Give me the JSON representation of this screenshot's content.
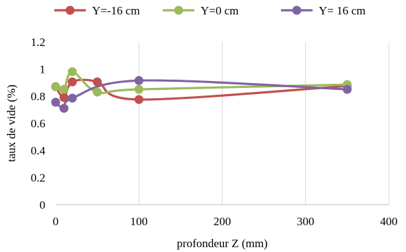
{
  "chart_data": {
    "type": "line",
    "title": "",
    "xlabel": "profondeur Z (mm)",
    "ylabel": "taux de vide (%)",
    "xlim": [
      0,
      400
    ],
    "ylim": [
      0,
      1.2
    ],
    "xticks": [
      0,
      100,
      200,
      300,
      400
    ],
    "yticks": [
      0,
      0.2,
      0.4,
      0.6,
      0.8,
      1,
      1.2
    ],
    "xtick_labels": [
      "0",
      "100",
      "200",
      "300",
      "400"
    ],
    "ytick_labels": [
      "0",
      "0.2",
      "0.4",
      "0.6",
      "0.8",
      "1",
      "1.2"
    ],
    "grid": "vertical",
    "legend_position": "top",
    "smooth": true,
    "series": [
      {
        "name": "Y=-16 cm",
        "color": "#C0504D",
        "points": [
          [
            0,
            0.87
          ],
          [
            10,
            0.79
          ],
          [
            20,
            0.905
          ],
          [
            50,
            0.905
          ],
          [
            100,
            0.775
          ],
          [
            350,
            0.875
          ]
        ]
      },
      {
        "name": "Y=0 cm",
        "color": "#9BBB59",
        "points": [
          [
            0,
            0.87
          ],
          [
            10,
            0.85
          ],
          [
            20,
            0.98
          ],
          [
            50,
            0.83
          ],
          [
            100,
            0.85
          ],
          [
            350,
            0.885
          ]
        ]
      },
      {
        "name": "Y= 16 cm",
        "color": "#8064A2",
        "points": [
          [
            0,
            0.755
          ],
          [
            10,
            0.71
          ],
          [
            20,
            0.785
          ],
          [
            100,
            0.915
          ],
          [
            350,
            0.85
          ]
        ]
      }
    ]
  }
}
